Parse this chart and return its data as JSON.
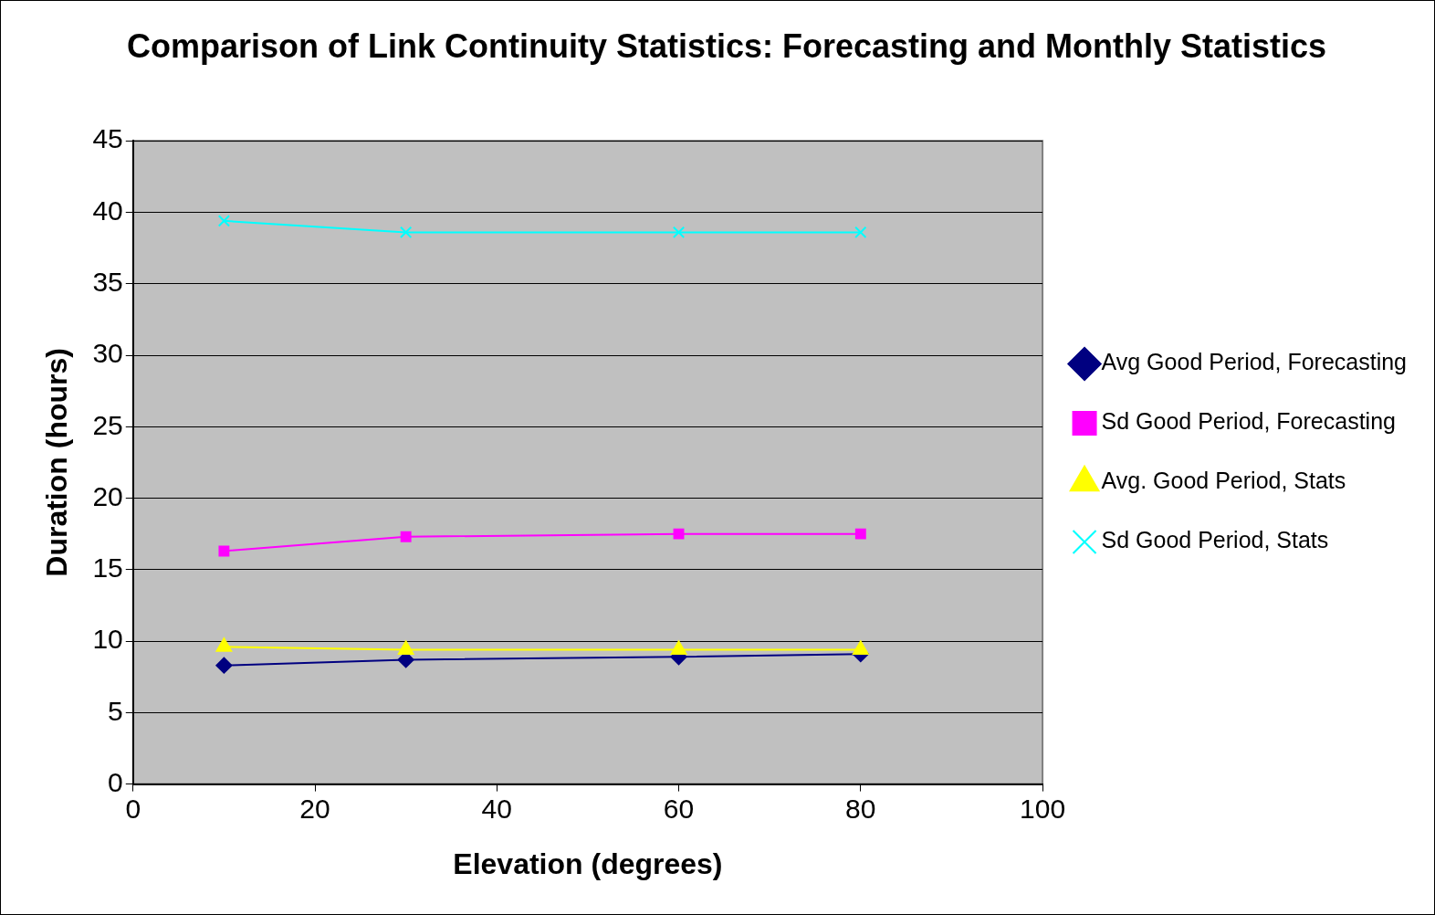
{
  "chart_data": {
    "type": "line",
    "title": "Comparison of Link Continuity Statistics: Forecasting and Monthly Statistics",
    "xlabel": "Elevation (degrees)",
    "ylabel": "Duration (hours)",
    "xlim": [
      0,
      100
    ],
    "xticks": [
      0,
      20,
      40,
      60,
      80,
      100
    ],
    "ylim": [
      0,
      45
    ],
    "yticks": [
      0,
      5,
      10,
      15,
      20,
      25,
      30,
      35,
      40,
      45
    ],
    "grid": "y",
    "legend": "right",
    "series": [
      {
        "name": "Avg Good Period, Forecasting",
        "color": "#000080",
        "marker": "diamond",
        "x": [
          10,
          30,
          60,
          80
        ],
        "values": [
          8.3,
          8.7,
          8.9,
          9.1
        ]
      },
      {
        "name": "Sd Good Period, Forecasting",
        "color": "#ff00ff",
        "marker": "square",
        "x": [
          10,
          30,
          60,
          80
        ],
        "values": [
          16.3,
          17.3,
          17.5,
          17.5
        ]
      },
      {
        "name": "Avg. Good Period, Stats",
        "color": "#ffff00",
        "marker": "triangle",
        "x": [
          10,
          30,
          60,
          80
        ],
        "values": [
          9.6,
          9.4,
          9.4,
          9.4
        ]
      },
      {
        "name": "Sd Good Period, Stats",
        "color": "#00ffff",
        "marker": "cross",
        "x": [
          10,
          30,
          60,
          80
        ],
        "values": [
          39.4,
          38.6,
          38.6,
          38.6
        ]
      }
    ]
  }
}
